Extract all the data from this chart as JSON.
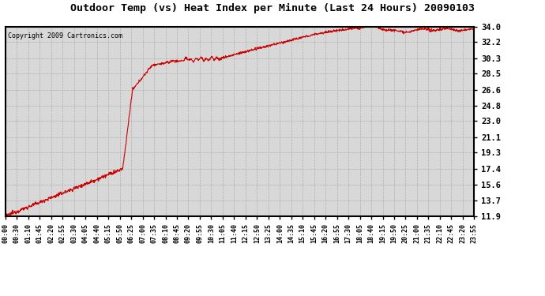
{
  "title": "Outdoor Temp (vs) Heat Index per Minute (Last 24 Hours) 20090103",
  "copyright": "Copyright 2009 Cartronics.com",
  "line_color": "#cc0000",
  "bg_color": "#ffffff",
  "plot_bg_color": "#d8d8d8",
  "grid_color": "#aaaaaa",
  "yticks": [
    11.9,
    13.7,
    15.6,
    17.4,
    19.3,
    21.1,
    23.0,
    24.8,
    26.6,
    28.5,
    30.3,
    32.2,
    34.0
  ],
  "ymin": 11.9,
  "ymax": 34.0,
  "xtick_labels": [
    "00:00",
    "00:30",
    "01:10",
    "01:45",
    "02:20",
    "02:55",
    "03:30",
    "04:05",
    "04:40",
    "05:15",
    "05:50",
    "06:25",
    "07:00",
    "07:35",
    "08:10",
    "08:45",
    "09:20",
    "09:55",
    "10:30",
    "11:05",
    "11:40",
    "12:15",
    "12:50",
    "13:25",
    "14:00",
    "14:35",
    "15:10",
    "15:45",
    "16:20",
    "16:55",
    "17:30",
    "18:05",
    "18:40",
    "19:15",
    "19:50",
    "20:25",
    "21:00",
    "21:35",
    "22:10",
    "22:45",
    "23:20",
    "23:55"
  ]
}
